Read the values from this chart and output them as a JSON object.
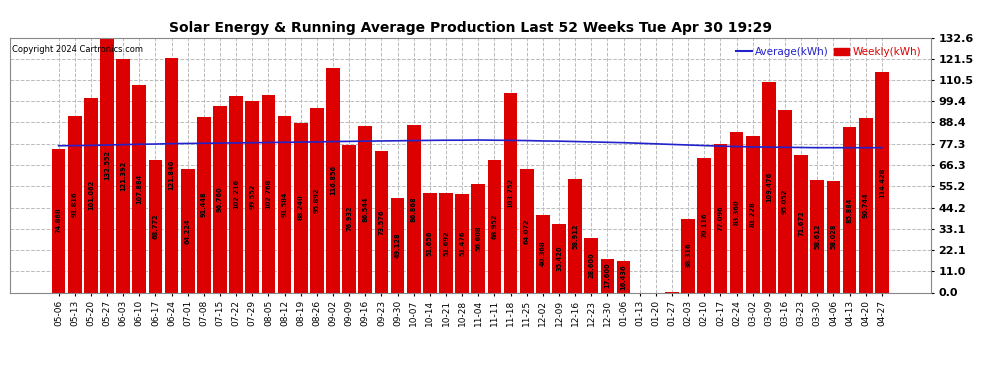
{
  "title": "Solar Energy & Running Average Production Last 52 Weeks Tue Apr 30 19:29",
  "copyright": "Copyright 2024 Cartronics.com",
  "legend_avg": "Average(kWh)",
  "legend_weekly": "Weekly(kWh)",
  "bar_color": "#DD0000",
  "avg_line_color": "#2222CC",
  "background_color": "#FFFFFF",
  "grid_color": "#BBBBBB",
  "ylim": [
    0,
    132.6
  ],
  "yticks": [
    0.0,
    11.0,
    22.1,
    33.1,
    44.2,
    55.2,
    66.3,
    77.3,
    88.4,
    99.4,
    110.5,
    121.5,
    132.6
  ],
  "categories": [
    "05-06",
    "05-13",
    "05-20",
    "05-27",
    "06-03",
    "06-10",
    "06-17",
    "06-24",
    "07-01",
    "07-08",
    "07-15",
    "07-22",
    "07-29",
    "08-05",
    "08-12",
    "08-19",
    "08-26",
    "09-02",
    "09-09",
    "09-16",
    "09-23",
    "09-30",
    "10-07",
    "10-14",
    "10-21",
    "10-28",
    "11-04",
    "11-11",
    "11-18",
    "11-25",
    "12-02",
    "12-09",
    "12-16",
    "12-23",
    "12-30",
    "01-06",
    "01-13",
    "01-20",
    "01-27",
    "02-03",
    "02-10",
    "02-17",
    "02-24",
    "03-02",
    "03-09",
    "03-16",
    "03-23",
    "03-30",
    "04-06",
    "04-13",
    "04-20",
    "04-27"
  ],
  "weekly_values": [
    74.868,
    91.816,
    101.062,
    132.552,
    121.392,
    107.884,
    68.772,
    121.84,
    64.224,
    91.448,
    96.76,
    102.216,
    99.552,
    102.768,
    91.584,
    88.24,
    95.892,
    116.856,
    76.932,
    86.544,
    73.576,
    49.128,
    86.868,
    51.656,
    51.692,
    51.476,
    56.608,
    68.952,
    103.752,
    64.072,
    40.368,
    35.42,
    58.912,
    28.6,
    17.6,
    16.436,
    0.0,
    0.0,
    0.148,
    38.316,
    70.116,
    77.096,
    83.36,
    81.228,
    109.476,
    95.052,
    71.672,
    58.612,
    58.028,
    85.884,
    90.744,
    114.428
  ],
  "avg_values": [
    76.3,
    76.4,
    76.5,
    76.7,
    76.9,
    77.1,
    77.2,
    77.4,
    77.5,
    77.6,
    77.7,
    77.8,
    77.9,
    78.0,
    78.1,
    78.2,
    78.3,
    78.5,
    78.6,
    78.7,
    78.8,
    78.9,
    79.0,
    79.1,
    79.2,
    79.2,
    79.3,
    79.2,
    79.1,
    79.0,
    78.8,
    78.7,
    78.5,
    78.3,
    78.1,
    77.9,
    77.6,
    77.3,
    77.0,
    76.7,
    76.4,
    76.1,
    75.9,
    75.7,
    75.6,
    75.5,
    75.4,
    75.3,
    75.3,
    75.3,
    75.3,
    75.3
  ]
}
